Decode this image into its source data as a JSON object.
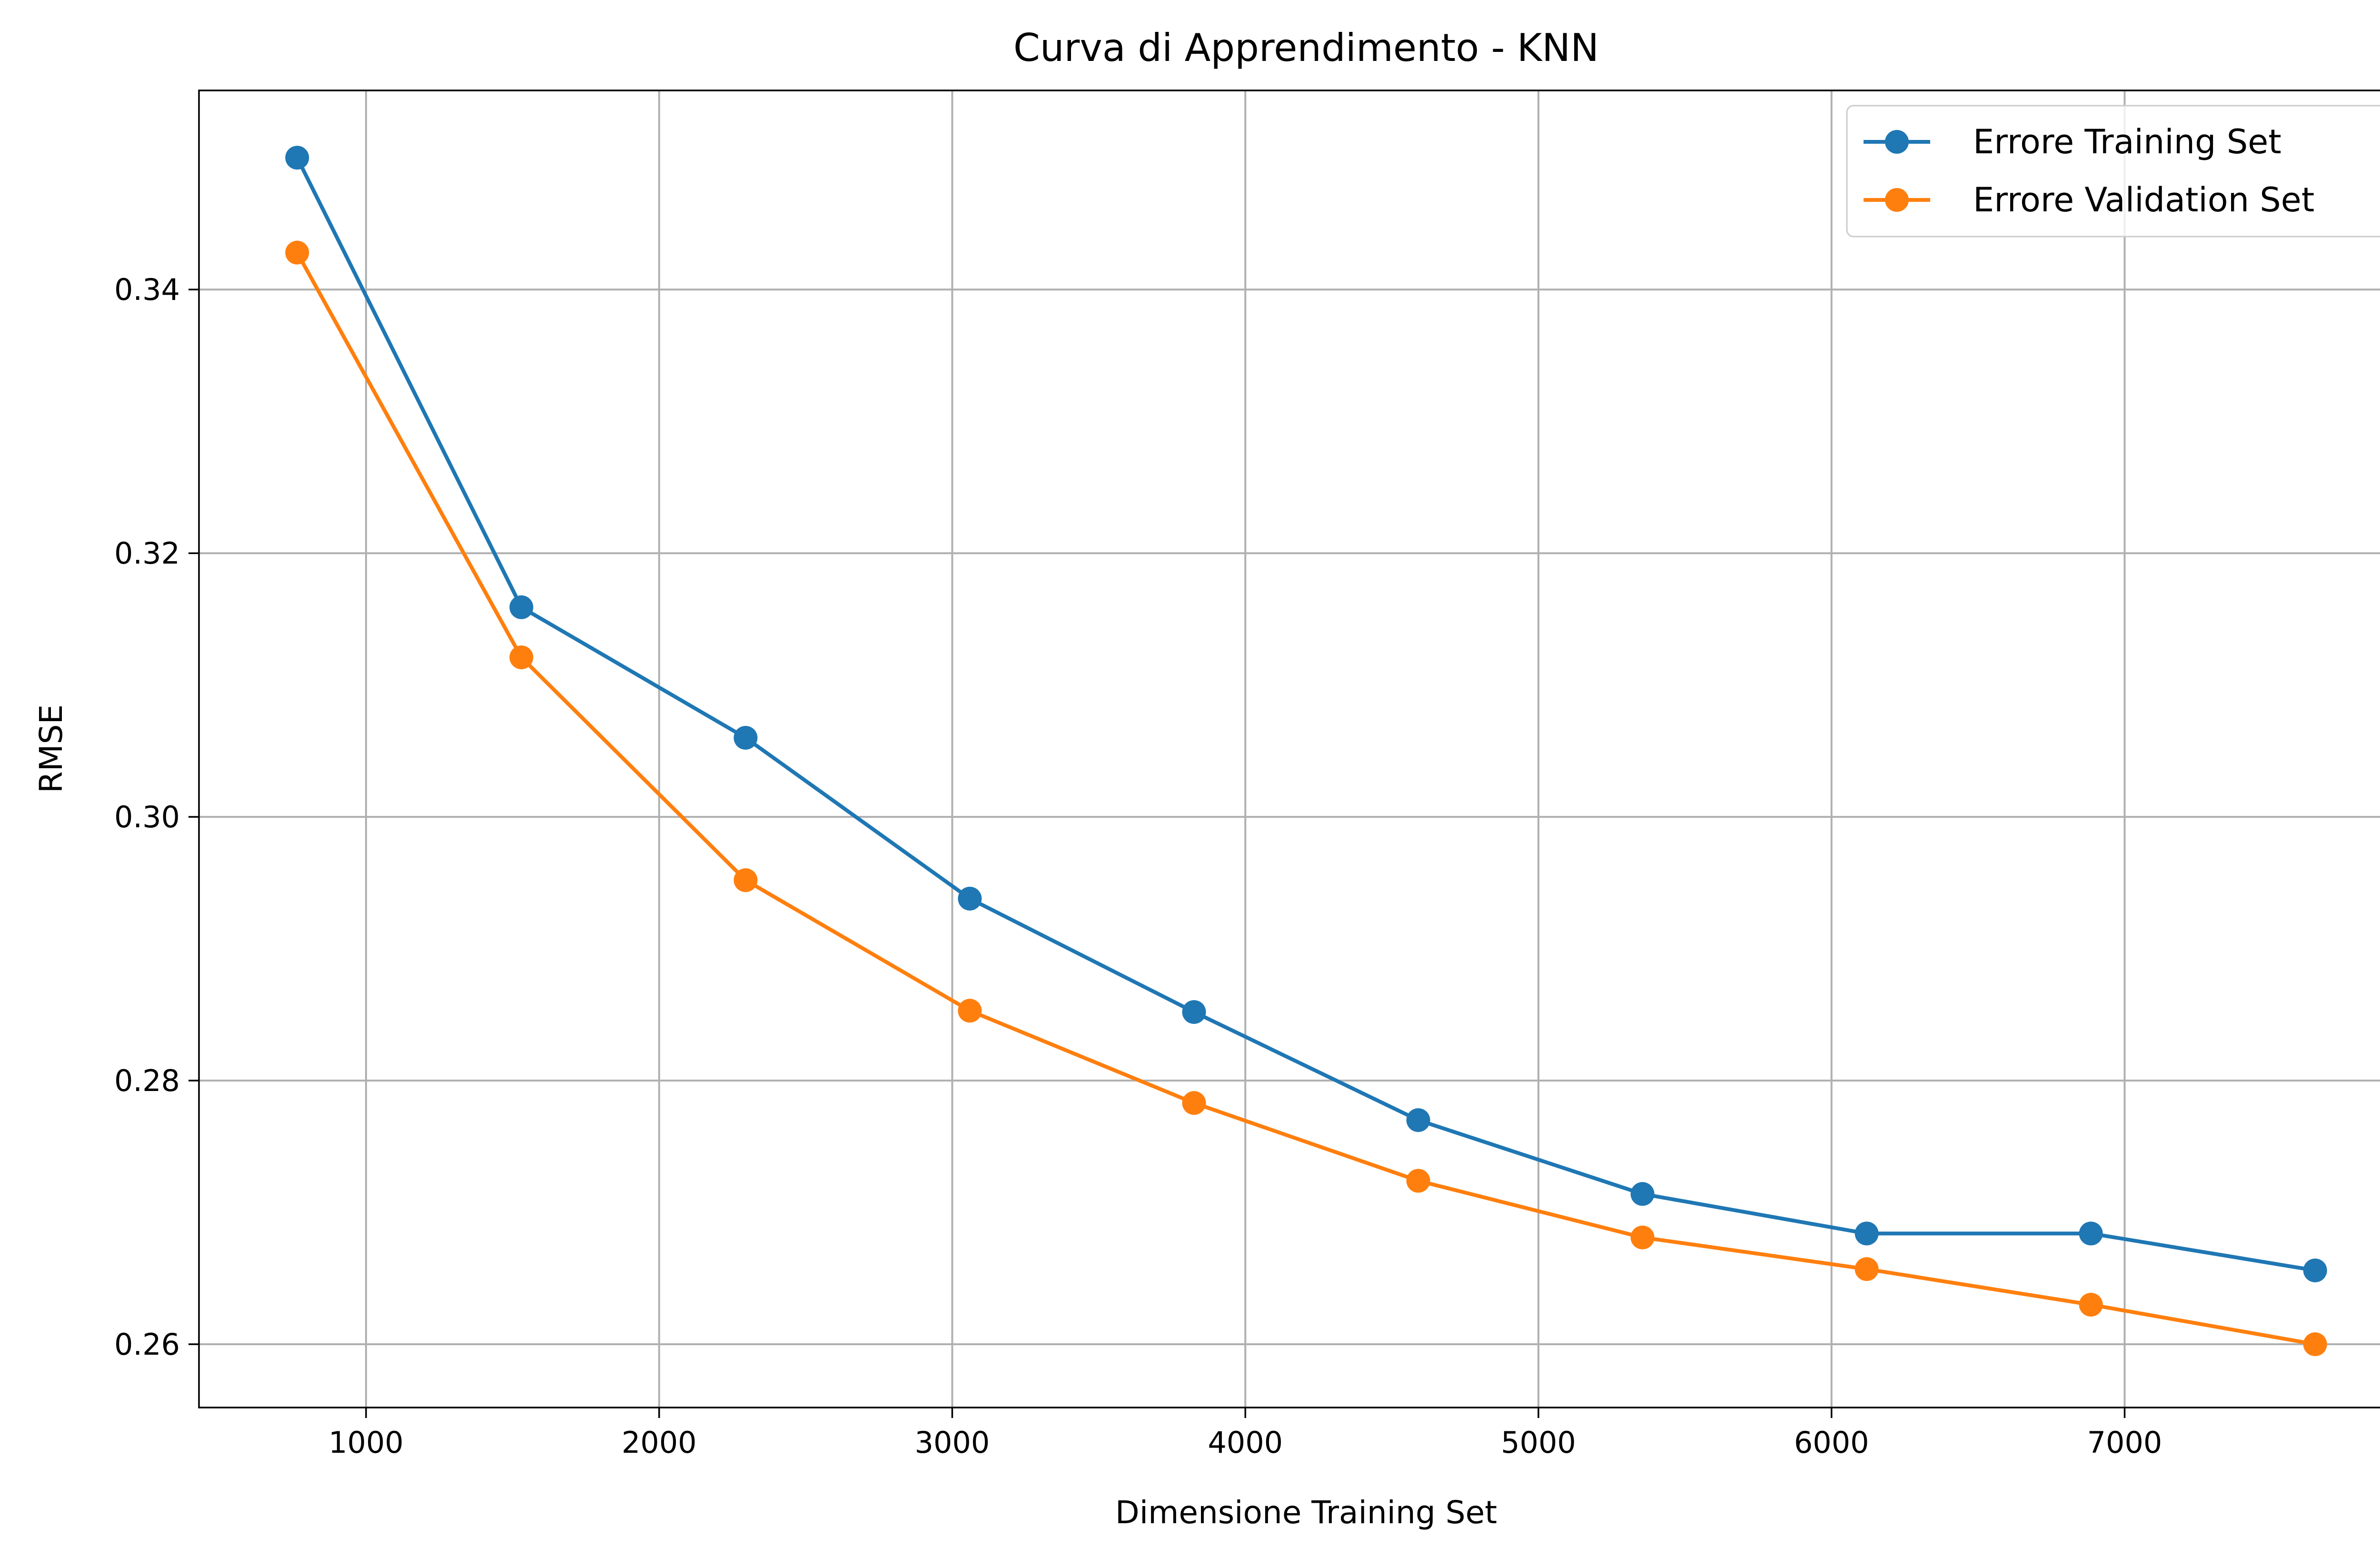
{
  "chart_data": {
    "type": "line",
    "title": "Curva di Apprendimento - KNN",
    "xlabel": "Dimensione Training Set",
    "ylabel": "RMSE",
    "xlim": [
      430,
      7985
    ],
    "ylim": [
      0.2552,
      0.3551
    ],
    "xticks": [
      {
        "value": 1000,
        "label": "1000"
      },
      {
        "value": 2000,
        "label": "2000"
      },
      {
        "value": 3000,
        "label": "3000"
      },
      {
        "value": 4000,
        "label": "4000"
      },
      {
        "value": 5000,
        "label": "5000"
      },
      {
        "value": 6000,
        "label": "6000"
      },
      {
        "value": 7000,
        "label": "7000"
      }
    ],
    "yticks": [
      {
        "value": 0.26,
        "label": "0.26"
      },
      {
        "value": 0.28,
        "label": "0.28"
      },
      {
        "value": 0.3,
        "label": "0.30"
      },
      {
        "value": 0.32,
        "label": "0.32"
      },
      {
        "value": 0.34,
        "label": "0.34"
      }
    ],
    "grid": true,
    "legend_position": "top-right",
    "x": [
      765,
      1530,
      2295,
      3060,
      3825,
      4590,
      5355,
      6120,
      6885,
      7650
    ],
    "series": [
      {
        "name": "Errore Training Set",
        "color": "#1f77b4",
        "marker": "circle",
        "values": [
          0.35,
          0.3159,
          0.306,
          0.2938,
          0.2852,
          0.277,
          0.2714,
          0.2684,
          0.2684,
          0.2656
        ]
      },
      {
        "name": "Errore Validation Set",
        "color": "#ff7f0e",
        "marker": "circle",
        "values": [
          0.3428,
          0.3121,
          0.2952,
          0.2853,
          0.2783,
          0.2724,
          0.2681,
          0.2657,
          0.263,
          0.26
        ]
      }
    ]
  }
}
